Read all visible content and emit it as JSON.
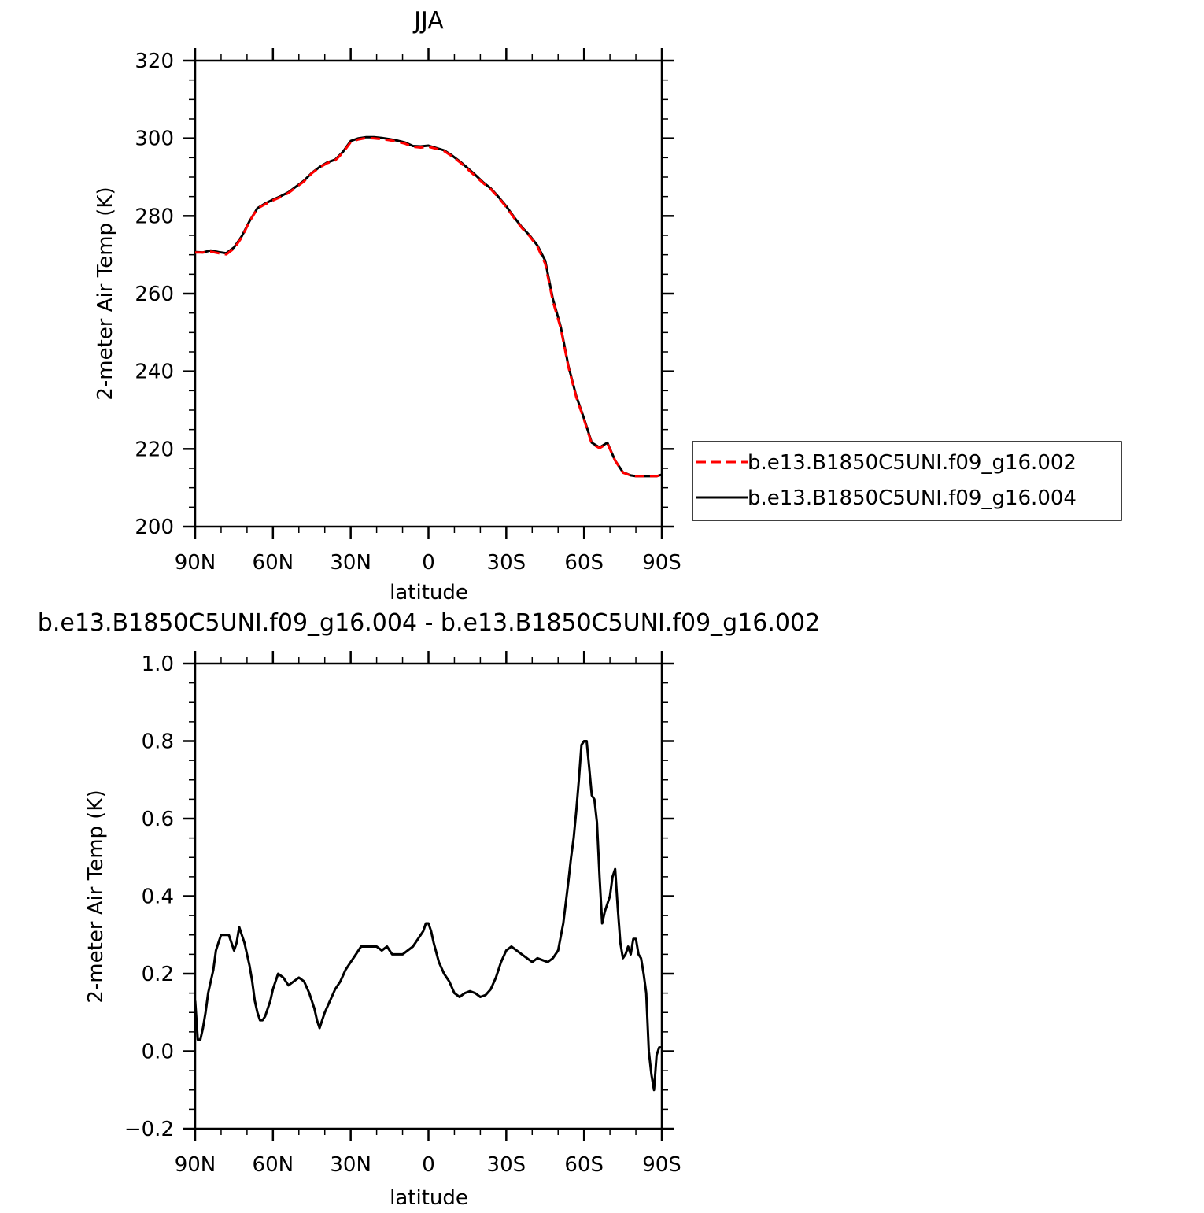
{
  "chart_data": [
    {
      "type": "line",
      "title": "JJA",
      "xlabel": "latitude",
      "ylabel": "2-meter Air Temp (K)",
      "xlim": [
        90,
        -90
      ],
      "ylim": [
        200,
        320
      ],
      "xticks": [
        90,
        60,
        30,
        0,
        -30,
        -60,
        -90
      ],
      "xtick_labels": [
        "90N",
        "60N",
        "30N",
        "0",
        "30S",
        "60S",
        "90S"
      ],
      "yticks": [
        200,
        220,
        240,
        260,
        280,
        300,
        320
      ],
      "ytick_labels": [
        "200",
        "220",
        "240",
        "260",
        "280",
        "300",
        "320"
      ],
      "grid": false,
      "legend": "right",
      "series": [
        {
          "name": "b.e13.B1850C5UNI.f09_g16.002",
          "color": "#ff0000",
          "dash": "dashed",
          "x": [
            90,
            87,
            84,
            81,
            78,
            75,
            72,
            69,
            66,
            63,
            60,
            57,
            54,
            51,
            48,
            45,
            42,
            39,
            36,
            33,
            30,
            27,
            24,
            21,
            18,
            15,
            12,
            9,
            6,
            3,
            0,
            -3,
            -6,
            -9,
            -12,
            -15,
            -18,
            -21,
            -24,
            -27,
            -30,
            -33,
            -36,
            -39,
            -42,
            -45,
            -48,
            -51,
            -54,
            -57,
            -60,
            -63,
            -66,
            -69,
            -72,
            -75,
            -78,
            -80,
            -82,
            -84,
            -86,
            -88,
            -90
          ],
          "y": [
            270.6,
            270.6,
            270.8,
            270.4,
            270.1,
            271.6,
            274.5,
            278.6,
            281.9,
            283.0,
            284.0,
            284.9,
            285.9,
            287.4,
            288.9,
            291.0,
            292.5,
            293.6,
            294.3,
            296.3,
            299.0,
            299.7,
            300.1,
            300.0,
            299.8,
            299.5,
            299.1,
            298.6,
            297.8,
            297.6,
            297.8,
            297.3,
            296.7,
            295.4,
            293.9,
            292.1,
            290.3,
            288.5,
            286.9,
            284.7,
            282.3,
            279.5,
            276.9,
            274.8,
            272.1,
            267.7,
            258.0,
            251.1,
            241.0,
            233.3,
            227.5,
            221.3,
            220.2,
            221.4,
            217.0,
            213.9,
            213.2,
            213.0,
            213.0,
            213.0,
            213.0,
            213.0,
            213.4
          ]
        },
        {
          "name": "b.e13.B1850C5UNI.f09_g16.004",
          "color": "#000000",
          "dash": "solid",
          "x": [
            90,
            87,
            84,
            81,
            78,
            75,
            72,
            69,
            66,
            63,
            60,
            57,
            54,
            51,
            48,
            45,
            42,
            39,
            36,
            33,
            30,
            27,
            24,
            21,
            18,
            15,
            12,
            9,
            6,
            3,
            0,
            -3,
            -6,
            -9,
            -12,
            -15,
            -18,
            -21,
            -24,
            -27,
            -30,
            -33,
            -36,
            -39,
            -42,
            -45,
            -48,
            -51,
            -54,
            -57,
            -60,
            -63,
            -66,
            -69,
            -72,
            -75,
            -78,
            -80,
            -82,
            -84,
            -86,
            -88,
            -90
          ],
          "y": [
            270.7,
            270.6,
            271.1,
            270.7,
            270.4,
            271.9,
            274.8,
            278.7,
            282.0,
            283.2,
            284.2,
            285.1,
            286.1,
            287.6,
            289.1,
            291.1,
            292.6,
            293.8,
            294.5,
            296.5,
            299.3,
            300.0,
            300.3,
            300.3,
            300.1,
            299.8,
            299.4,
            298.9,
            298.0,
            297.9,
            298.1,
            297.5,
            296.9,
            295.6,
            294.1,
            292.4,
            290.6,
            288.7,
            287.1,
            284.9,
            282.5,
            279.7,
            277.1,
            275.0,
            272.4,
            268.5,
            258.6,
            251.5,
            241.3,
            233.6,
            227.8,
            221.6,
            220.4,
            221.6,
            217.0,
            214.0,
            213.2,
            213.0,
            213.0,
            213.0,
            213.0,
            213.0,
            213.4
          ]
        }
      ]
    },
    {
      "type": "line",
      "title": "b.e13.B1850C5UNI.f09_g16.004 - b.e13.B1850C5UNI.f09_g16.002",
      "xlabel": "latitude",
      "ylabel": "2-meter Air Temp (K)",
      "xlim": [
        90,
        -90
      ],
      "ylim": [
        -0.2,
        1.0
      ],
      "xticks": [
        90,
        60,
        30,
        0,
        -30,
        -60,
        -90
      ],
      "xtick_labels": [
        "90N",
        "60N",
        "30N",
        "0",
        "30S",
        "60S",
        "90S"
      ],
      "yticks": [
        -0.2,
        0.0,
        0.2,
        0.4,
        0.6,
        0.8,
        1.0
      ],
      "ytick_labels": [
        "−0.2",
        "0.0",
        "0.2",
        "0.4",
        "0.6",
        "0.8",
        "1.0"
      ],
      "grid": false,
      "series": [
        {
          "color": "#000000",
          "dash": "solid",
          "x": [
            90,
            89,
            88,
            87,
            86,
            85,
            84,
            83,
            82,
            81,
            80,
            79,
            78,
            77,
            76,
            75,
            74,
            73,
            72,
            71,
            70,
            69,
            68,
            67,
            66,
            65,
            64,
            63,
            62,
            61,
            60,
            58,
            56,
            54,
            52,
            50,
            48,
            46,
            44,
            43,
            42,
            41,
            40,
            38,
            36,
            34,
            32,
            30,
            28,
            26,
            24,
            22,
            20,
            18,
            16,
            14,
            12,
            10,
            8,
            6,
            4,
            2,
            1,
            0,
            -1,
            -2,
            -4,
            -6,
            -8,
            -10,
            -12,
            -14,
            -16,
            -18,
            -20,
            -22,
            -24,
            -26,
            -28,
            -30,
            -32,
            -34,
            -36,
            -38,
            -40,
            -42,
            -44,
            -46,
            -48,
            -50,
            -52,
            -54,
            -55,
            -56,
            -57,
            -58,
            -59,
            -60,
            -61,
            -62,
            -63,
            -64,
            -65,
            -66,
            -67,
            -68,
            -69,
            -70,
            -71,
            -72,
            -73,
            -74,
            -75,
            -76,
            -77,
            -78,
            -79,
            -80,
            -81,
            -82,
            -83,
            -84,
            -85,
            -86,
            -87,
            -88,
            -89,
            -90
          ],
          "y": [
            0.13,
            0.03,
            0.03,
            0.06,
            0.1,
            0.15,
            0.18,
            0.21,
            0.26,
            0.28,
            0.3,
            0.3,
            0.3,
            0.3,
            0.28,
            0.26,
            0.28,
            0.32,
            0.3,
            0.28,
            0.25,
            0.22,
            0.18,
            0.13,
            0.1,
            0.08,
            0.08,
            0.09,
            0.11,
            0.13,
            0.16,
            0.2,
            0.19,
            0.17,
            0.18,
            0.19,
            0.18,
            0.15,
            0.11,
            0.08,
            0.06,
            0.08,
            0.1,
            0.13,
            0.16,
            0.18,
            0.21,
            0.23,
            0.25,
            0.27,
            0.27,
            0.27,
            0.27,
            0.26,
            0.27,
            0.25,
            0.25,
            0.25,
            0.26,
            0.27,
            0.29,
            0.31,
            0.33,
            0.33,
            0.31,
            0.28,
            0.23,
            0.2,
            0.18,
            0.15,
            0.14,
            0.15,
            0.155,
            0.15,
            0.14,
            0.145,
            0.16,
            0.19,
            0.23,
            0.26,
            0.27,
            0.26,
            0.25,
            0.24,
            0.23,
            0.24,
            0.235,
            0.23,
            0.24,
            0.26,
            0.33,
            0.44,
            0.5,
            0.55,
            0.62,
            0.7,
            0.79,
            0.8,
            0.8,
            0.73,
            0.66,
            0.65,
            0.59,
            0.45,
            0.33,
            0.36,
            0.38,
            0.4,
            0.45,
            0.47,
            0.37,
            0.28,
            0.24,
            0.25,
            0.27,
            0.25,
            0.29,
            0.29,
            0.25,
            0.24,
            0.2,
            0.15,
            0.0,
            -0.06,
            -0.1,
            -0.01,
            0.01,
            0.01
          ]
        }
      ]
    }
  ]
}
